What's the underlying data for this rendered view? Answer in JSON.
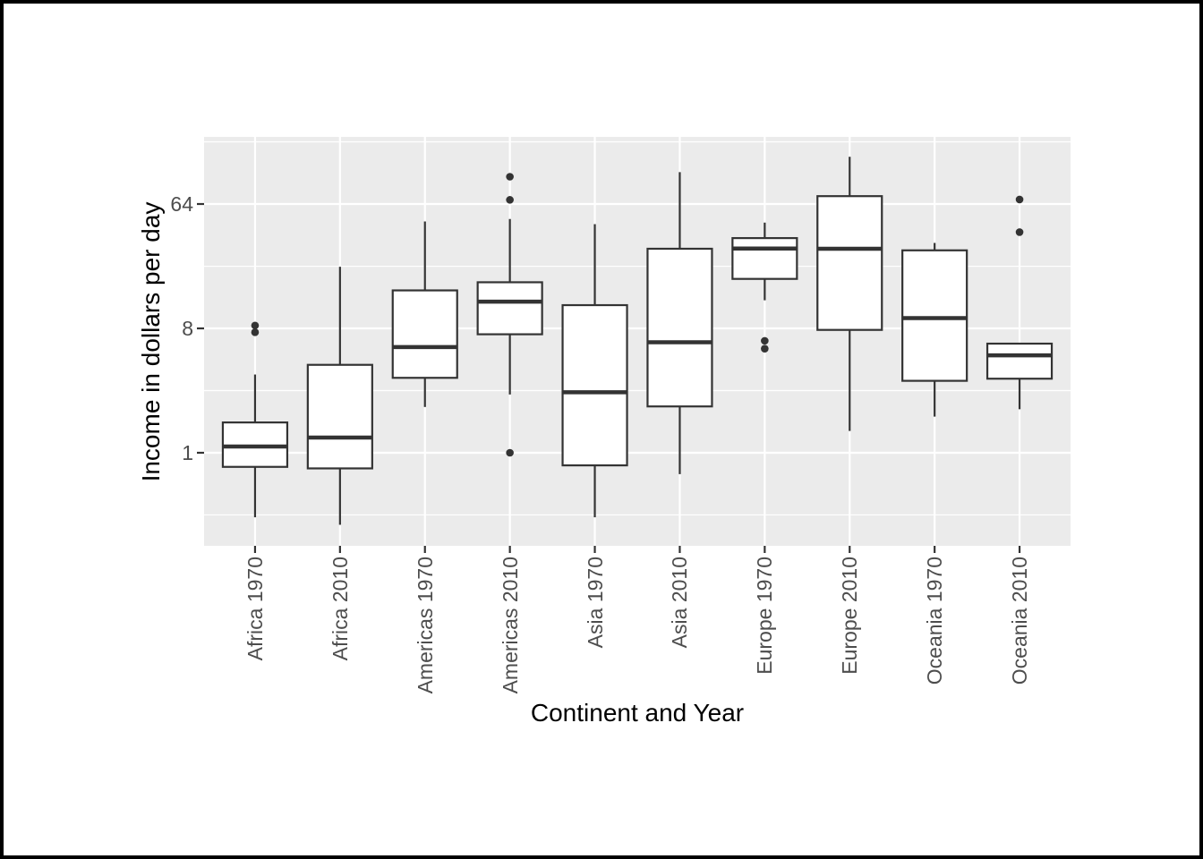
{
  "figure": {
    "background": "#FFFFFF",
    "border_color": "#000000",
    "panel_bg": "#EBEBEB",
    "grid_color": "#FFFFFF",
    "box_stroke": "#333333",
    "box_fill": "#FFFFFF",
    "tick_color": "#333333",
    "tick_label_color": "#4D4D4D",
    "axis_title_color": "#000000"
  },
  "chart_data": {
    "type": "boxplot",
    "title": "",
    "xlabel": "Continent and Year",
    "ylabel": "Income in dollars per day",
    "y_scale": "log",
    "y_tick_labels": [
      "64",
      "8",
      "1"
    ],
    "y_ticks": [
      64,
      8,
      1
    ],
    "y_minor_gridlines": [
      0.354,
      2.83,
      22.6,
      181
    ],
    "ylim": [
      0.21,
      197
    ],
    "grid": true,
    "legend": "none",
    "categories": [
      "Africa 1970",
      "Africa 2010",
      "Americas 1970",
      "Americas 2010",
      "Asia 1970",
      "Asia 2010",
      "Europe 1970",
      "Europe 2010",
      "Oceania 1970",
      "Oceania 2010"
    ],
    "series": [
      {
        "label": "Africa 1970",
        "whisker_low": 0.34,
        "q1": 0.79,
        "median": 1.11,
        "q3": 1.66,
        "whisker_high": 3.7,
        "outliers": [
          8.4,
          7.5
        ]
      },
      {
        "label": "Africa 2010",
        "whisker_low": 0.3,
        "q1": 0.77,
        "median": 1.29,
        "q3": 4.35,
        "whisker_high": 22.4,
        "outliers": []
      },
      {
        "label": "Americas 1970",
        "whisker_low": 2.15,
        "q1": 3.5,
        "median": 5.85,
        "q3": 15.1,
        "whisker_high": 47.8,
        "outliers": []
      },
      {
        "label": "Americas 2010",
        "whisker_low": 2.65,
        "q1": 7.25,
        "median": 12.5,
        "q3": 17.3,
        "whisker_high": 49.8,
        "outliers": [
          101,
          68.6,
          1.0
        ]
      },
      {
        "label": "Asia 1970",
        "whisker_low": 0.34,
        "q1": 0.81,
        "median": 2.75,
        "q3": 11.8,
        "whisker_high": 45.7,
        "outliers": []
      },
      {
        "label": "Asia 2010",
        "whisker_low": 0.7,
        "q1": 2.17,
        "median": 6.35,
        "q3": 30.3,
        "whisker_high": 109,
        "outliers": []
      },
      {
        "label": "Europe 1970",
        "whisker_low": 12.8,
        "q1": 18.3,
        "median": 30.4,
        "q3": 36.2,
        "whisker_high": 46.9,
        "outliers": [
          6.5,
          5.7
        ]
      },
      {
        "label": "Europe 2010",
        "whisker_low": 1.44,
        "q1": 7.8,
        "median": 30.3,
        "q3": 73,
        "whisker_high": 141,
        "outliers": []
      },
      {
        "label": "Oceania 1970",
        "whisker_low": 1.83,
        "q1": 3.33,
        "median": 9.5,
        "q3": 29.5,
        "whisker_high": 33.4,
        "outliers": []
      },
      {
        "label": "Oceania 2010",
        "whisker_low": 2.07,
        "q1": 3.45,
        "median": 5.1,
        "q3": 6.2,
        "whisker_high": 6.2,
        "outliers": [
          69,
          40
        ]
      }
    ]
  }
}
